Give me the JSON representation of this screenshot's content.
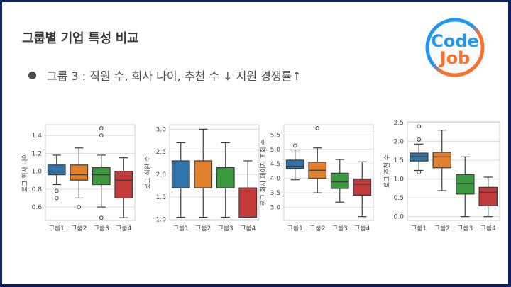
{
  "slide": {
    "title": "그룹별 기업 특성 비교",
    "bullet": "그룹 3 : 직원 수, 회사 나이, 추천 수 ↓ 지원 경쟁률↑",
    "logo": {
      "line1": "Code",
      "line2": "Job",
      "color1": "#2196f3",
      "color2": "#ff6f2c"
    },
    "border_color": "#0b2160"
  },
  "palette": {
    "그룹1": "#2f74a8",
    "그룹2": "#e07f2c",
    "그룹3": "#3b9a3b",
    "그룹4": "#c33a3a"
  },
  "chart_data": [
    {
      "type": "box",
      "ylabel": "로그 회사 나이",
      "categories": [
        "그룹1",
        "그룹2",
        "그룹3",
        "그룹4"
      ],
      "yticks": [
        0.6,
        0.8,
        1.0,
        1.2,
        1.4
      ],
      "ylim": [
        0.45,
        1.52
      ],
      "boxes": [
        {
          "whisker_low": 0.85,
          "q1": 0.96,
          "median": 1.0,
          "q3": 1.07,
          "whisker_high": 1.18,
          "outliers": [
            0.78,
            0.7
          ]
        },
        {
          "whisker_low": 0.7,
          "q1": 0.9,
          "median": 0.96,
          "q3": 1.07,
          "whisker_high": 1.26,
          "outliers": [
            0.6
          ]
        },
        {
          "whisker_low": 0.6,
          "q1": 0.85,
          "median": 0.96,
          "q3": 1.04,
          "whisker_high": 1.18,
          "outliers": [
            1.4,
            1.48,
            0.48
          ]
        },
        {
          "whisker_low": 0.48,
          "q1": 0.7,
          "median": 0.9,
          "q3": 1.0,
          "whisker_high": 1.15,
          "outliers": []
        }
      ]
    },
    {
      "type": "box",
      "ylabel": "로그 직원 수",
      "categories": [
        "그룹1",
        "그룹2",
        "그룹3",
        "그룹4"
      ],
      "yticks": [
        1.0,
        1.5,
        2.0,
        2.5,
        3.0
      ],
      "ylim": [
        0.98,
        3.1
      ],
      "boxes": [
        {
          "whisker_low": 1.05,
          "q1": 1.7,
          "median": 1.7,
          "q3": 2.3,
          "whisker_high": 2.7,
          "outliers": []
        },
        {
          "whisker_low": 1.05,
          "q1": 1.7,
          "median": 1.7,
          "q3": 2.3,
          "whisker_high": 3.0,
          "outliers": []
        },
        {
          "whisker_low": 1.05,
          "q1": 1.7,
          "median": 1.7,
          "q3": 2.15,
          "whisker_high": 2.7,
          "outliers": []
        },
        {
          "whisker_low": 1.05,
          "q1": 1.05,
          "median": 1.05,
          "q3": 1.7,
          "whisker_high": 2.3,
          "outliers": []
        }
      ]
    },
    {
      "type": "box",
      "ylabel": "로그 회사 페이지 조회 수",
      "categories": [
        "그룹1",
        "그룹2",
        "그룹3",
        "그룹4"
      ],
      "yticks": [
        3.0,
        3.5,
        4.0,
        4.5,
        5.0,
        5.5
      ],
      "ylim": [
        2.55,
        5.85
      ],
      "boxes": [
        {
          "whisker_low": 3.95,
          "q1": 4.34,
          "median": 4.42,
          "q3": 4.63,
          "whisker_high": 4.98,
          "outliers": [
            5.13
          ]
        },
        {
          "whisker_low": 3.5,
          "q1": 4.0,
          "median": 4.28,
          "q3": 4.56,
          "whisker_high": 5.05,
          "outliers": [
            5.73
          ]
        },
        {
          "whisker_low": 3.18,
          "q1": 3.65,
          "median": 3.88,
          "q3": 4.18,
          "whisker_high": 4.65,
          "outliers": []
        },
        {
          "whisker_low": 2.68,
          "q1": 3.42,
          "median": 3.8,
          "q3": 3.97,
          "whisker_high": 4.57,
          "outliers": []
        }
      ]
    },
    {
      "type": "box",
      "ylabel": "로그 추천 수",
      "categories": [
        "그룹1",
        "그룹2",
        "그룹3",
        "그룹4"
      ],
      "yticks": [
        0.0,
        0.5,
        1.0,
        1.5,
        2.0,
        2.5
      ],
      "ylim": [
        -0.1,
        2.52
      ],
      "boxes": [
        {
          "whisker_low": 1.23,
          "q1": 1.48,
          "median": 1.6,
          "q3": 1.69,
          "whisker_high": 1.93,
          "outliers": [
            2.05,
            2.4,
            1.18
          ]
        },
        {
          "whisker_low": 0.69,
          "q1": 1.3,
          "median": 1.59,
          "q3": 1.71,
          "whisker_high": 2.3,
          "outliers": []
        },
        {
          "whisker_low": 0.0,
          "q1": 0.6,
          "median": 0.88,
          "q3": 1.12,
          "whisker_high": 1.59,
          "outliers": []
        },
        {
          "whisker_low": 0.0,
          "q1": 0.29,
          "median": 0.65,
          "q3": 0.78,
          "whisker_high": 1.05,
          "outliers": []
        }
      ]
    }
  ]
}
